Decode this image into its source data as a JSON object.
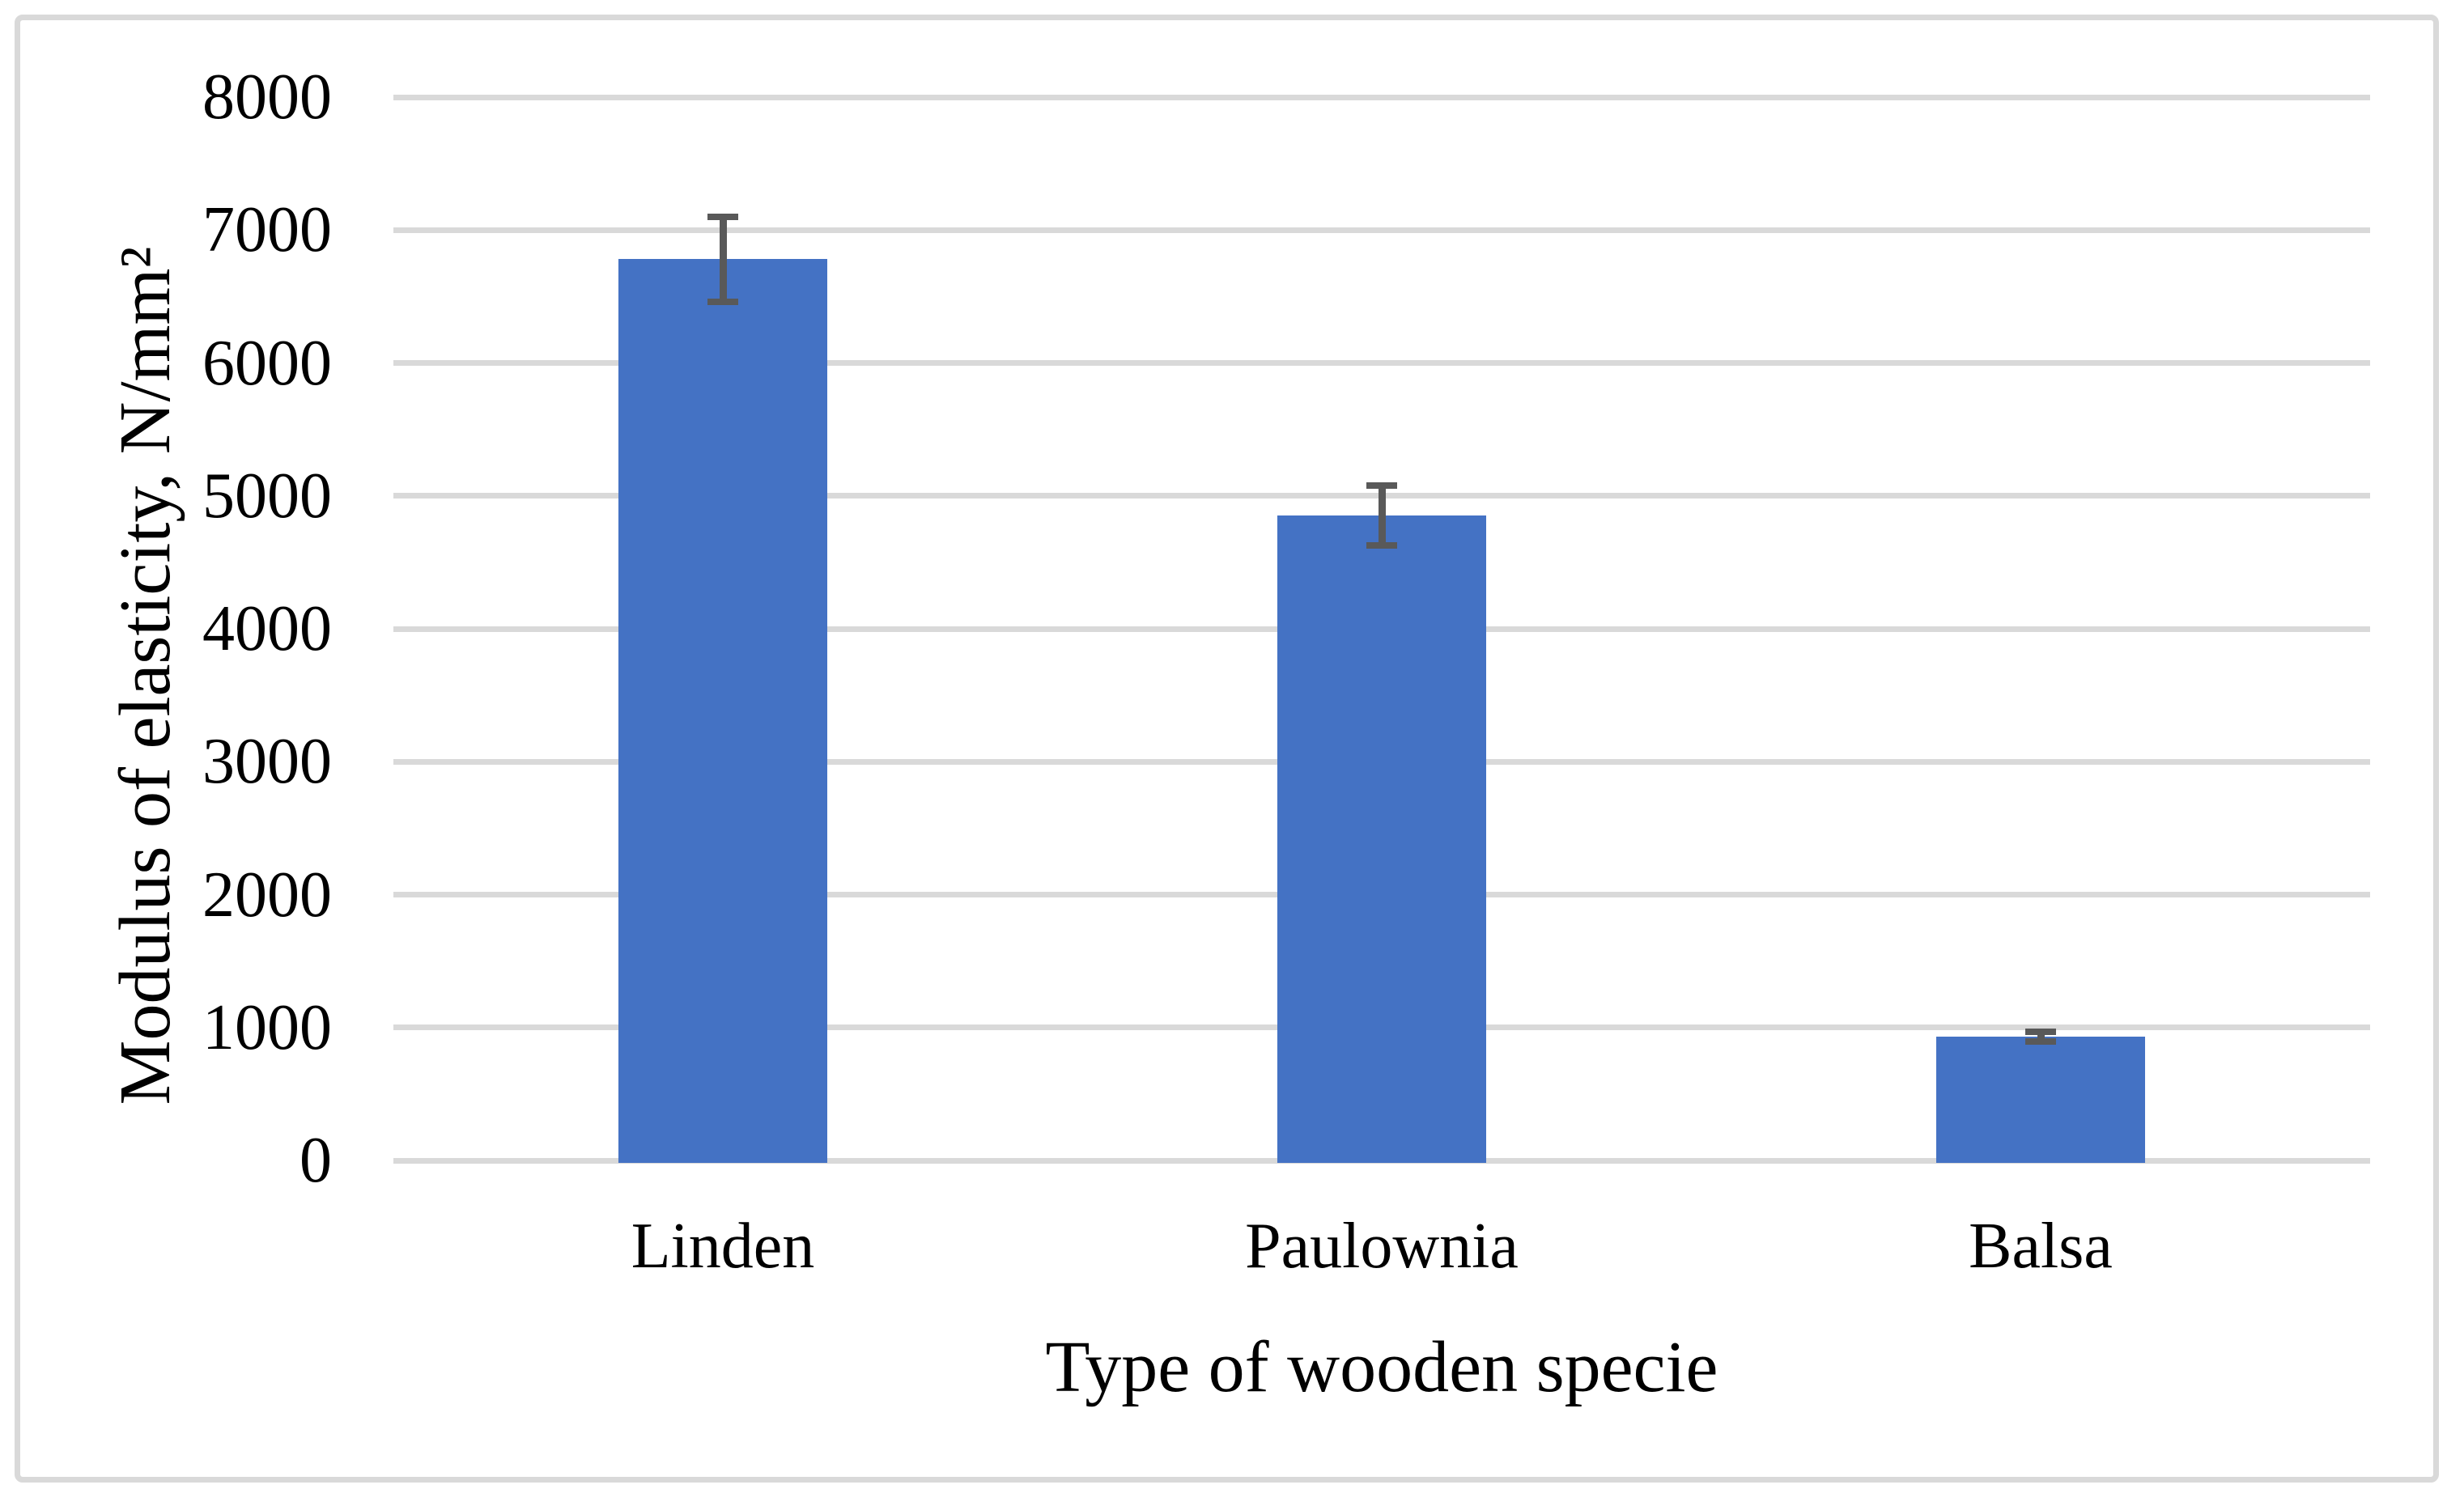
{
  "figure": {
    "background_color": "#FFFFFF",
    "border_color": "#D9D9D9"
  },
  "chart_data": {
    "type": "bar",
    "title": "",
    "categories": [
      "Linden",
      "Paulownia",
      "Balsa"
    ],
    "values": [
      6780,
      4850,
      930
    ],
    "error_bars": [
      345,
      250,
      60
    ],
    "xlabel": "Type of wooden specie",
    "ylabel": "Modulus of elasticity, N/mm²",
    "ylim": [
      0,
      8000
    ],
    "ytick_step": 1000,
    "yticks": [
      0,
      1000,
      2000,
      3000,
      4000,
      5000,
      6000,
      7000,
      8000
    ],
    "grid": "horizontal",
    "legend_position": "none",
    "bar_color": "#4472C4",
    "error_bar_color": "#595959",
    "gridline_color": "#D9D9D9",
    "axis_text_color": "#000000"
  }
}
